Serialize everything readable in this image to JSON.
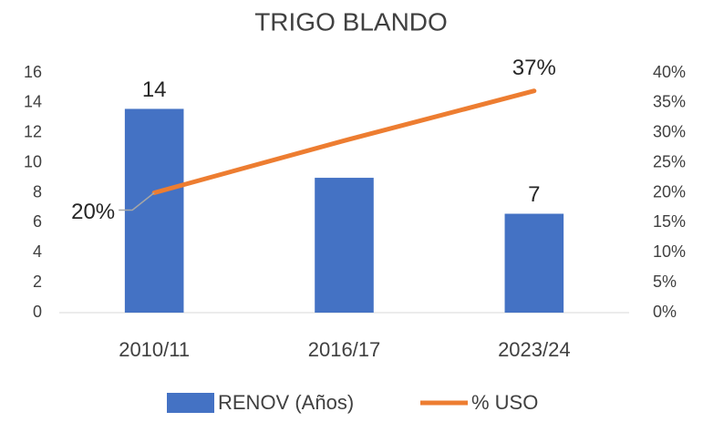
{
  "chart_data": {
    "type": "bar-line",
    "title": "TRIGO BLANDO",
    "categories": [
      "2010/11",
      "2016/17",
      "2023/24"
    ],
    "series": [
      {
        "name": "RENOV (Años)",
        "type": "bar",
        "color": "#4472c4",
        "values": [
          13.6,
          9.0,
          6.6
        ],
        "value_labels": [
          "14",
          null,
          "7"
        ]
      },
      {
        "name": "% USO",
        "type": "line",
        "axis": "y2",
        "color": "#ed7d31",
        "values": [
          20,
          28.7,
          37
        ],
        "value_labels": [
          "20%",
          null,
          "37%"
        ]
      }
    ],
    "ylim": [
      0,
      16
    ],
    "yticks": [
      0,
      2,
      4,
      6,
      8,
      10,
      12,
      14,
      16
    ],
    "y2lim": [
      0,
      40
    ],
    "y2ticks": [
      {
        "value": 0,
        "label": "0%"
      },
      {
        "value": 5,
        "label": "5%"
      },
      {
        "value": 10,
        "label": "10%"
      },
      {
        "value": 15,
        "label": "15%"
      },
      {
        "value": 20,
        "label": "20%"
      },
      {
        "value": 25,
        "label": "25%"
      },
      {
        "value": 30,
        "label": "30%"
      },
      {
        "value": 35,
        "label": "35%"
      },
      {
        "value": 40,
        "label": "40%"
      }
    ],
    "grid": false,
    "legend": "bottom"
  }
}
